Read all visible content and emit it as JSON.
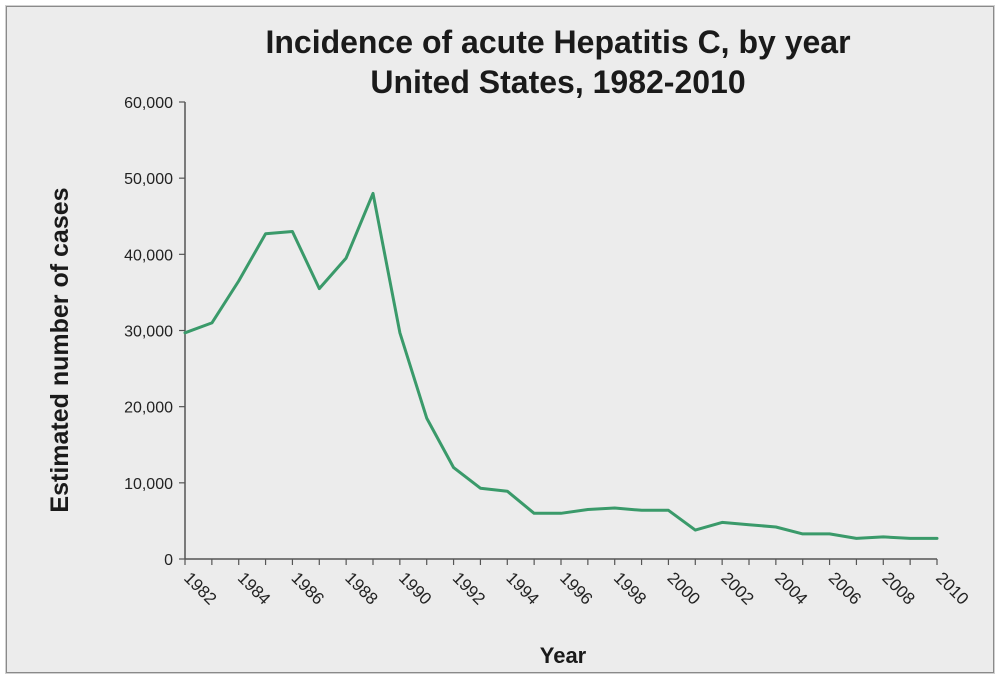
{
  "chart_data": {
    "type": "line",
    "title": "Incidence of acute Hepatitis C, by year",
    "subtitle": "United States, 1982-2010",
    "xlabel": "Year",
    "ylabel": "Estimated number of cases",
    "ylim": [
      0,
      60000
    ],
    "yticks": [
      "0",
      "10,000",
      "20,000",
      "30,000",
      "40,000",
      "50,000",
      "60,000"
    ],
    "xticks": [
      "1982",
      "1984",
      "1986",
      "1988",
      "1990",
      "1992",
      "1994",
      "1996",
      "1998",
      "2000",
      "2002",
      "2004",
      "2006",
      "2008",
      "2010"
    ],
    "x": [
      1982,
      1983,
      1984,
      1985,
      1986,
      1987,
      1988,
      1989,
      1990,
      1991,
      1992,
      1993,
      1994,
      1995,
      1996,
      1997,
      1998,
      1999,
      2000,
      2001,
      2002,
      2003,
      2004,
      2005,
      2006,
      2007,
      2008,
      2009,
      2010
    ],
    "series": [
      {
        "values": [
          29700,
          31000,
          36500,
          42700,
          43000,
          35500,
          39500,
          48000,
          29700,
          18500,
          12000,
          9300,
          8900,
          6000,
          6000,
          6500,
          6700,
          6400,
          6400,
          3800,
          4800,
          4500,
          4200,
          3300,
          3300,
          2700,
          2900,
          2700,
          2700
        ],
        "color": "#3a9a6a"
      }
    ],
    "grid": false,
    "legend": "none"
  }
}
